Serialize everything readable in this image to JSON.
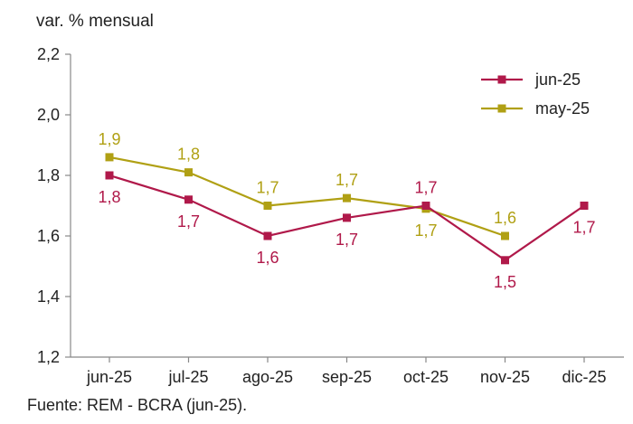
{
  "chart_data": {
    "type": "line",
    "ylabel": "var. % mensual",
    "source": "Fuente: REM - BCRA (jun-25).",
    "categories": [
      "jun-25",
      "jul-25",
      "ago-25",
      "sep-25",
      "oct-25",
      "nov-25",
      "dic-25"
    ],
    "ylim": [
      1.2,
      2.2
    ],
    "yticks": [
      "1,2",
      "1,4",
      "1,6",
      "1,8",
      "2,0",
      "2,2"
    ],
    "ytick_values": [
      1.2,
      1.4,
      1.6,
      1.8,
      2.0,
      2.2
    ],
    "grid": false,
    "legend_position": "top-right",
    "series": [
      {
        "name": "jun-25",
        "color": "#b0194a",
        "values": [
          1.8,
          1.72,
          1.6,
          1.66,
          1.7,
          1.52,
          1.7
        ],
        "labels": [
          "1,8",
          "1,7",
          "1,6",
          "1,7",
          "1,7",
          "1,5",
          "1,7"
        ],
        "label_side": [
          "below",
          "below",
          "below",
          "below",
          "above",
          "below",
          "below"
        ]
      },
      {
        "name": "may-25",
        "color": "#b0a014",
        "values": [
          1.86,
          1.81,
          1.7,
          1.725,
          1.69,
          1.6,
          null
        ],
        "labels": [
          "1,9",
          "1,8",
          "1,7",
          "1,7",
          "1,7",
          "1,6",
          null
        ],
        "label_side": [
          "above",
          "above",
          "above",
          "above",
          "below",
          "above",
          null
        ]
      }
    ]
  }
}
